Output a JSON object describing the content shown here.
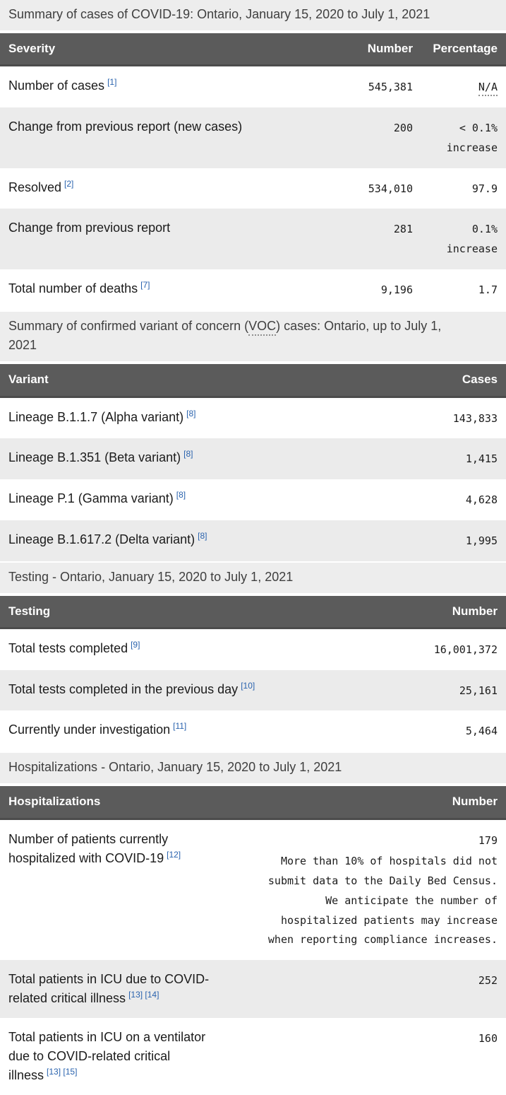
{
  "colors": {
    "header_bg": "#5b5b5b",
    "header_text": "#ffffff",
    "caption_bg": "#ededed",
    "row_alt_bg": "#ebebeb",
    "text": "#1b1b1b",
    "footnote_link_blue": "#2a63ae"
  },
  "cases_table": {
    "caption": "Summary of cases of COVID-19: Ontario, January 15, 2020 to July 1, 2021",
    "columns": [
      "Severity",
      "Number",
      "Percentage"
    ],
    "rows": [
      {
        "label": "Number of cases",
        "footnote": "[1]",
        "number": "545,381",
        "percentage": "N/A"
      },
      {
        "label": "Change from previous report (new cases)",
        "number": "200",
        "percentage": "< 0.1% increase"
      },
      {
        "label": "Resolved",
        "footnote": "[2]",
        "number": "534,010",
        "percentage": "97.9"
      },
      {
        "label": "Change from previous report",
        "number": "281",
        "percentage": "0.1% increase"
      },
      {
        "label": "Total number of deaths",
        "footnote": "[7]",
        "number": "9,196",
        "percentage": "1.7"
      }
    ]
  },
  "voc_table": {
    "caption_pre": "Summary of confirmed variant of concern (",
    "caption_abbr": "VOC",
    "caption_post": ") cases: Ontario, up to July 1, 2021",
    "columns": [
      "Variant",
      "Cases"
    ],
    "rows": [
      {
        "label": "Lineage B.1.1.7 (Alpha variant)",
        "footnote": "[8]",
        "number": "143,833"
      },
      {
        "label": "Lineage B.1.351 (Beta variant)",
        "footnote": "[8]",
        "number": "1,415"
      },
      {
        "label": "Lineage P.1 (Gamma variant)",
        "footnote": "[8]",
        "number": "4,628"
      },
      {
        "label": "Lineage B.1.617.2 (Delta variant)",
        "footnote": "[8]",
        "number": "1,995"
      }
    ]
  },
  "testing_table": {
    "caption": "Testing - Ontario, January 15, 2020 to July 1, 2021",
    "columns": [
      "Testing",
      "Number"
    ],
    "rows": [
      {
        "label": "Total tests completed",
        "footnote": "[9]",
        "number": "16,001,372"
      },
      {
        "label": "Total tests completed in the previous day",
        "footnote": "[10]",
        "number": "25,161"
      },
      {
        "label": "Currently under investigation",
        "footnote": "[11]",
        "number": "5,464"
      }
    ]
  },
  "hospitalizations_table": {
    "caption": "Hospitalizations - Ontario, January 15, 2020 to July 1, 2021",
    "columns": [
      "Hospitalizations",
      "Number"
    ],
    "rows": [
      {
        "label": "Number of patients currently hospitalized with COVID-19",
        "footnote": "[12]",
        "number": "179",
        "note_lines": [
          "More than 10% of hospitals did not",
          "submit data to the Daily Bed Census.",
          "We anticipate the number of",
          "hospitalized patients may increase",
          "when reporting compliance increases."
        ]
      },
      {
        "label": "Total patients in ICU due to COVID-related critical illness",
        "footnote": "[13] [14]",
        "number": "252"
      },
      {
        "label": "Total patients in ICU on a ventilator due to COVID-related critical illness",
        "footnote": "[13] [15]",
        "number": "160"
      }
    ]
  }
}
